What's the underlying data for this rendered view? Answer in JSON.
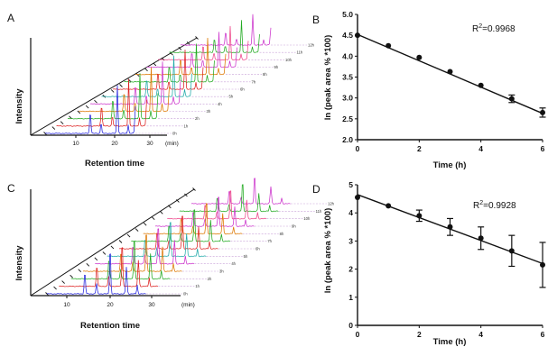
{
  "panels": {
    "A": {
      "letter": "A",
      "ylabel": "Intensity",
      "xlabel": "Retention time",
      "x_ticks": [
        "10",
        "20",
        "30"
      ],
      "x_unit": "(min)",
      "series_labels": [
        "0h",
        "1h",
        "2h",
        "3h",
        "4h",
        "5h",
        "6h",
        "7h",
        "8h",
        "9h",
        "10h",
        "11h",
        "12h"
      ]
    },
    "C": {
      "letter": "C",
      "ylabel": "Intensity",
      "xlabel": "Retention time",
      "x_ticks": [
        "10",
        "20",
        "30"
      ],
      "x_unit": "(min)",
      "series_labels": [
        "0h",
        "1h",
        "2h",
        "3h",
        "4h",
        "5h",
        "6h",
        "7h",
        "8h",
        "9h",
        "10h",
        "11h",
        "12h"
      ]
    },
    "B": {
      "letter": "B",
      "r2_prefix": "R",
      "r2_sup": "2",
      "r2_value": "=0.9968"
    },
    "D": {
      "letter": "D",
      "r2_prefix": "R",
      "r2_sup": "2",
      "r2_value": "=0.9928"
    }
  },
  "chart_data": [
    {
      "type": "line",
      "panel": "B",
      "xlabel": "Time (h)",
      "ylabel": "ln (peak area % *100)",
      "xlim": [
        0,
        6
      ],
      "ylim": [
        2.0,
        5.0
      ],
      "x_ticks": [
        "0",
        "2",
        "4",
        "6"
      ],
      "y_ticks": [
        "2.0",
        "2.5",
        "3.0",
        "3.5",
        "4.0",
        "4.5",
        "5.0"
      ],
      "points": {
        "x": [
          0,
          1,
          2,
          3,
          4,
          5,
          6
        ],
        "y": [
          4.5,
          4.25,
          3.97,
          3.63,
          3.3,
          2.98,
          2.65
        ],
        "err": [
          0.02,
          0.02,
          0.02,
          0.02,
          0.06,
          0.09,
          0.11
        ]
      },
      "fit_line": {
        "x": [
          0,
          6
        ],
        "y": [
          4.52,
          2.63
        ]
      }
    },
    {
      "type": "line",
      "panel": "D",
      "xlabel": "Time (h)",
      "ylabel": "ln (peak area % *100)",
      "xlim": [
        0,
        6
      ],
      "ylim": [
        0,
        5
      ],
      "x_ticks": [
        "0",
        "2",
        "4",
        "6"
      ],
      "y_ticks": [
        "0",
        "1",
        "2",
        "3",
        "4",
        "5"
      ],
      "points": {
        "x": [
          0,
          1,
          2,
          3,
          4,
          5,
          6
        ],
        "y": [
          4.55,
          4.25,
          3.9,
          3.5,
          3.1,
          2.65,
          2.15
        ],
        "err": [
          0.05,
          0.05,
          0.2,
          0.3,
          0.4,
          0.55,
          0.8
        ]
      },
      "fit_line": {
        "x": [
          0,
          6
        ],
        "y": [
          4.65,
          2.2
        ]
      }
    }
  ],
  "colors": {
    "axis": "#111111",
    "fit": "#111111",
    "dashed_baseline": "#c8a0d8",
    "trace_palette": [
      "#2222dd",
      "#dd2222",
      "#22aa22",
      "#dd7700",
      "#cc33cc",
      "#22aaaa",
      "#dd2222",
      "#22aa22",
      "#dd7700",
      "#cc33cc",
      "#ee4488",
      "#22aa22",
      "#cc33cc"
    ]
  }
}
